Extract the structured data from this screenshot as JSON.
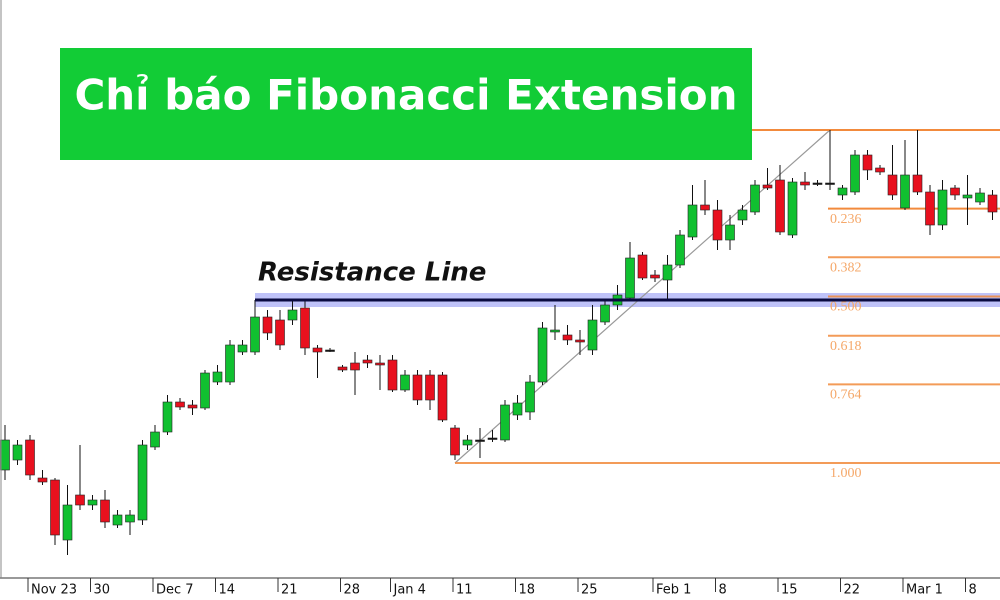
{
  "chart_data": {
    "type": "candlestick",
    "title": "Chỉ báo Fibonacci Extension",
    "categories": [
      null,
      null,
      "Nov 23",
      null,
      null,
      null,
      null,
      "30",
      null,
      null,
      null,
      null,
      "Dec 7",
      null,
      null,
      null,
      null,
      "14",
      null,
      null,
      null,
      null,
      "21",
      null,
      null,
      null,
      null,
      "28",
      null,
      null,
      null,
      "Jan 4",
      null,
      null,
      null,
      null,
      "11",
      null,
      null,
      null,
      null,
      "18",
      null,
      null,
      null,
      null,
      "25",
      null,
      null,
      null,
      null,
      null,
      "Feb 1",
      null,
      null,
      null,
      null,
      "8",
      null,
      null,
      null,
      null,
      "15",
      null,
      null,
      null,
      null,
      "22",
      null,
      null,
      null,
      null,
      "Mar 1",
      null,
      null,
      null,
      null,
      "8",
      null,
      null
    ],
    "open": [
      130,
      140,
      160,
      122,
      120,
      60,
      105,
      95,
      100,
      75,
      78,
      80,
      153,
      168,
      198,
      195,
      192,
      218,
      218,
      248,
      248,
      283,
      280,
      280,
      292,
      252,
      250,
      233,
      237,
      240,
      237,
      240,
      210,
      225,
      225,
      225,
      172,
      155,
      160,
      162,
      160,
      185,
      188,
      218,
      268,
      265,
      260,
      250,
      278,
      295,
      302,
      345,
      325,
      320,
      335,
      363,
      395,
      390,
      360,
      380,
      388,
      415,
      420,
      365,
      418,
      417,
      417,
      405,
      408,
      445,
      432,
      425,
      392,
      425,
      408,
      375,
      412,
      402,
      398,
      405
    ],
    "high": [
      175,
      160,
      165,
      130,
      122,
      115,
      155,
      105,
      110,
      90,
      90,
      160,
      175,
      205,
      202,
      200,
      230,
      235,
      260,
      260,
      300,
      290,
      290,
      300,
      300,
      255,
      252,
      235,
      248,
      245,
      245,
      245,
      230,
      230,
      230,
      228,
      175,
      165,
      172,
      170,
      200,
      205,
      225,
      278,
      295,
      275,
      270,
      295,
      300,
      315,
      358,
      348,
      330,
      345,
      370,
      415,
      420,
      400,
      385,
      395,
      420,
      432,
      435,
      422,
      428,
      420,
      470,
      415,
      450,
      450,
      435,
      455,
      460,
      470,
      415,
      420,
      415,
      425,
      412,
      410
    ],
    "low": [
      120,
      135,
      120,
      115,
      55,
      45,
      90,
      90,
      72,
      72,
      65,
      75,
      150,
      165,
      190,
      185,
      190,
      215,
      215,
      245,
      245,
      260,
      250,
      275,
      245,
      222,
      248,
      228,
      205,
      232,
      210,
      208,
      208,
      195,
      190,
      178,
      140,
      150,
      142,
      158,
      158,
      180,
      180,
      215,
      260,
      255,
      245,
      245,
      275,
      290,
      300,
      320,
      318,
      300,
      332,
      360,
      385,
      350,
      350,
      375,
      385,
      410,
      365,
      362,
      410,
      414,
      410,
      400,
      405,
      420,
      425,
      400,
      390,
      405,
      365,
      370,
      400,
      375,
      395,
      380
    ],
    "close": [
      160,
      155,
      125,
      118,
      65,
      95,
      95,
      100,
      78,
      85,
      85,
      155,
      168,
      198,
      193,
      192,
      227,
      228,
      255,
      255,
      283,
      267,
      255,
      290,
      252,
      248,
      250,
      230,
      230,
      237,
      235,
      210,
      225,
      200,
      200,
      180,
      145,
      160,
      160,
      162,
      195,
      197,
      218,
      272,
      270,
      260,
      258,
      280,
      295,
      305,
      342,
      322,
      322,
      335,
      365,
      395,
      390,
      360,
      375,
      390,
      415,
      412,
      368,
      418,
      415,
      417,
      417,
      412,
      445,
      430,
      428,
      405,
      425,
      408,
      375,
      410,
      405,
      405,
      407,
      388
    ],
    "up_color": "#10c030",
    "down_color": "#e8101e",
    "ylim": [
      22,
      600
    ],
    "resistance": {
      "label": "Resistance Line",
      "value": 300,
      "color": "#0a0a40",
      "band_color": "#a9aef5"
    },
    "fib": {
      "high": 470,
      "low": 137,
      "color": "#f28a3c",
      "label_color": "#f5a86a",
      "levels": [
        0.236,
        0.382,
        {
          "value": 0.5,
          "label": "0.500"
        },
        0.618,
        0.764,
        {
          "value": 1,
          "label": "1.000"
        }
      ]
    }
  }
}
